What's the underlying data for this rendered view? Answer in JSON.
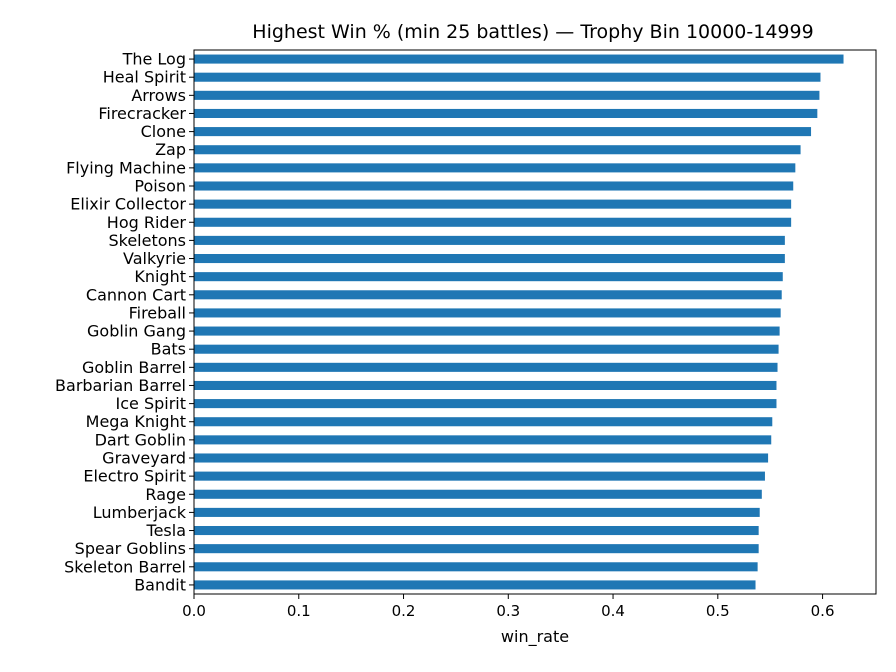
{
  "chart_data": {
    "type": "bar",
    "orientation": "horizontal",
    "title": "Highest Win % (min 25 battles) — Trophy Bin 10000-14999",
    "xlabel": "win_rate",
    "ylabel": "",
    "xlim": [
      0,
      0.651
    ],
    "xticks": [
      "0.0",
      "0.1",
      "0.2",
      "0.3",
      "0.4",
      "0.5",
      "0.6"
    ],
    "grid": false,
    "legend": "none",
    "bar_color": "#1f77b4",
    "categories": [
      "The Log",
      "Heal Spirit",
      "Arrows",
      "Firecracker",
      "Clone",
      "Zap",
      "Flying Machine",
      "Poison",
      "Elixir Collector",
      "Hog Rider",
      "Skeletons",
      "Valkyrie",
      "Knight",
      "Cannon Cart",
      "Fireball",
      "Goblin Gang",
      "Bats",
      "Goblin Barrel",
      "Barbarian Barrel",
      "Ice Spirit",
      "Mega Knight",
      "Dart Goblin",
      "Graveyard",
      "Electro Spirit",
      "Rage",
      "Lumberjack",
      "Tesla",
      "Spear Goblins",
      "Skeleton Barrel",
      "Bandit"
    ],
    "values": [
      0.62,
      0.598,
      0.597,
      0.595,
      0.589,
      0.579,
      0.574,
      0.572,
      0.57,
      0.57,
      0.564,
      0.564,
      0.562,
      0.561,
      0.56,
      0.559,
      0.558,
      0.557,
      0.556,
      0.556,
      0.552,
      0.551,
      0.548,
      0.545,
      0.542,
      0.54,
      0.539,
      0.539,
      0.538,
      0.536
    ]
  }
}
